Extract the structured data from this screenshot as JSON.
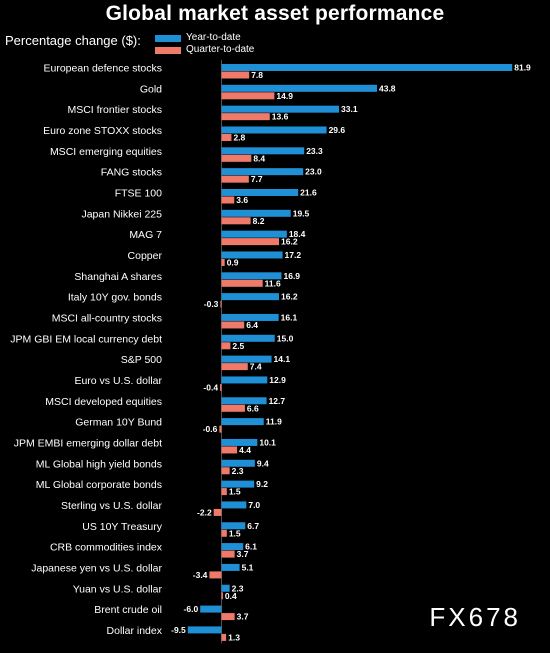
{
  "chart_data": {
    "type": "bar",
    "orientation": "horizontal",
    "title": "Global market asset performance",
    "ylabel": "Percentage change ($):",
    "grid": false,
    "legend_position": "top-left",
    "categories": [
      "European defence stocks",
      "Gold",
      "MSCI frontier stocks",
      "Euro zone STOXX stocks",
      "MSCI emerging equities",
      "FANG stocks",
      "FTSE 100",
      "Japan Nikkei 225",
      "MAG 7",
      "Copper",
      "Shanghai A shares",
      "Italy 10Y gov. bonds",
      "MSCI all-country stocks",
      "JPM GBI EM local currency debt",
      "S&P 500",
      "Euro vs U.S. dollar",
      "MSCI developed equities",
      "German 10Y Bund",
      "JPM EMBI emerging dollar debt",
      "ML Global high yield bonds",
      "ML Global corporate bonds",
      "Sterling vs U.S. dollar",
      "US 10Y Treasury",
      "CRB commodities index",
      "Japanese yen vs U.S. dollar",
      "Yuan vs U.S. dollar",
      "Brent crude oil",
      "Dollar index"
    ],
    "series": [
      {
        "name": "Year-to-date",
        "color": "#1f8fd6",
        "values": [
          81.9,
          43.8,
          33.1,
          29.6,
          23.3,
          23.0,
          21.6,
          19.5,
          18.4,
          17.2,
          16.9,
          16.2,
          16.1,
          15.0,
          14.1,
          12.9,
          12.7,
          11.9,
          10.1,
          9.4,
          9.2,
          7.0,
          6.7,
          6.1,
          5.1,
          2.3,
          -6.0,
          -9.5
        ]
      },
      {
        "name": "Quarter-to-date",
        "color": "#f07a6a",
        "values": [
          7.8,
          14.9,
          13.6,
          2.8,
          8.4,
          7.7,
          3.6,
          8.2,
          16.2,
          0.9,
          11.6,
          -0.3,
          6.4,
          2.5,
          7.4,
          -0.4,
          6.6,
          -0.6,
          4.4,
          2.3,
          1.5,
          -2.2,
          1.5,
          3.7,
          -3.4,
          0.4,
          3.7,
          1.3
        ]
      }
    ]
  },
  "watermark": "FX678"
}
